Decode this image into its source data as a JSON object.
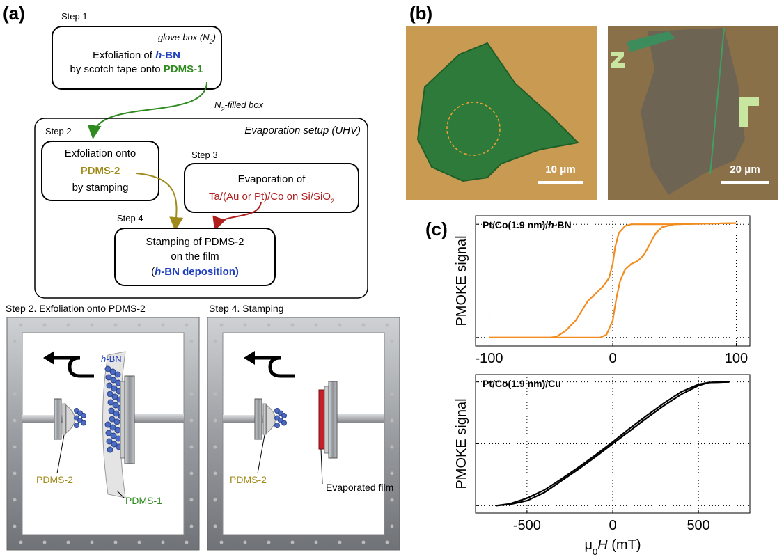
{
  "panel_a": {
    "label": "(a)",
    "step1": "Step 1",
    "box1": {
      "env": [
        "glove-box (N",
        "2",
        ")"
      ],
      "line1": [
        "Exfoliation of ",
        "h",
        "-BN"
      ],
      "line2": [
        "by scotch tape onto ",
        "PDMS-1"
      ]
    },
    "arrow1_label": [
      "N",
      "2",
      "-filled box"
    ],
    "setup_label": "Evaporation setup (UHV)",
    "step2": "Step 2",
    "box2": [
      "Exfoliation onto",
      "PDMS-2",
      "by stamping"
    ],
    "step3": "Step 3",
    "box3": {
      "line1": "Evaporation of",
      "line2": [
        "Ta/(Au or Pt)/Co on Si/SiO",
        "2"
      ]
    },
    "step4": "Step 4",
    "box4": {
      "line1": "Stamping of PDMS-2",
      "line2": "on the film",
      "line3": [
        "(",
        "h",
        "-BN deposition)"
      ]
    },
    "illustration1": {
      "title": "Step 2. Exfoliation onto PDMS-2",
      "hbn": [
        "h",
        "-BN"
      ],
      "pdms2": "PDMS-2",
      "pdms1": "PDMS-1"
    },
    "illustration2": {
      "title": "Step 4. Stamping",
      "pdms2": "PDMS-2",
      "film": "Evaporated film"
    }
  },
  "panel_b": {
    "label": "(b)",
    "scale1": "10 μm",
    "scale2": "20 μm"
  },
  "panel_c": {
    "label": "(c)"
  },
  "chart_data": [
    {
      "type": "line",
      "annotation": [
        "Pt/Co(1.9 nm)/",
        "h",
        "-BN"
      ],
      "ylabel": "PMOKE signal",
      "xlim": [
        -111,
        111
      ],
      "xticks": [
        -100,
        0,
        100
      ],
      "ylim": [
        -1.15,
        1.15
      ],
      "yticks": [
        -1,
        0,
        1
      ],
      "ytick_labels": false,
      "grid": true,
      "series": [
        {
          "color": "#f28c1e",
          "x": [
            -100,
            -50,
            -10,
            -5,
            0,
            3,
            6,
            10,
            15,
            20,
            25,
            30,
            35,
            40,
            50,
            100
          ],
          "values": [
            -1,
            -1,
            -1,
            -0.95,
            -0.7,
            -0.3,
            0,
            0.2,
            0.3,
            0.35,
            0.45,
            0.65,
            0.85,
            0.95,
            1,
            1.02
          ]
        },
        {
          "color": "#f28c1e",
          "x": [
            100,
            50,
            15,
            10,
            5,
            2,
            0,
            -3,
            -8,
            -15,
            -20,
            -30,
            -38,
            -45,
            -50,
            -100
          ],
          "values": [
            1.02,
            1,
            1,
            0.97,
            0.85,
            0.6,
            0.3,
            0.05,
            -0.1,
            -0.25,
            -0.35,
            -0.7,
            -0.88,
            -0.98,
            -1,
            -1
          ]
        }
      ]
    },
    {
      "type": "line",
      "annotation": [
        "Pt/Co(1.9 nm)/Cu"
      ],
      "ylabel": "PMOKE signal",
      "xlabel": [
        "μ",
        "0",
        "H",
        " (mT)"
      ],
      "xlim": [
        -800,
        800
      ],
      "xticks": [
        -500,
        0,
        500
      ],
      "ylim": [
        -1.12,
        1.12
      ],
      "yticks": [
        -1,
        0,
        1
      ],
      "ytick_labels": false,
      "grid": true,
      "series": [
        {
          "color": "#000000",
          "x": [
            -680,
            -600,
            -500,
            -400,
            -300,
            -200,
            -100,
            0,
            100,
            200,
            300,
            400,
            500,
            560,
            680
          ],
          "values": [
            -1,
            -0.98,
            -0.92,
            -0.79,
            -0.6,
            -0.41,
            -0.21,
            0,
            0.21,
            0.42,
            0.62,
            0.8,
            0.94,
            0.99,
            1
          ]
        },
        {
          "color": "#000000",
          "x": [
            680,
            560,
            500,
            400,
            300,
            200,
            100,
            0,
            -100,
            -200,
            -300,
            -400,
            -500,
            -600,
            -680
          ],
          "values": [
            1,
            0.99,
            0.96,
            0.84,
            0.66,
            0.46,
            0.25,
            0.03,
            -0.18,
            -0.38,
            -0.57,
            -0.75,
            -0.88,
            -0.97,
            -1
          ]
        }
      ]
    }
  ]
}
